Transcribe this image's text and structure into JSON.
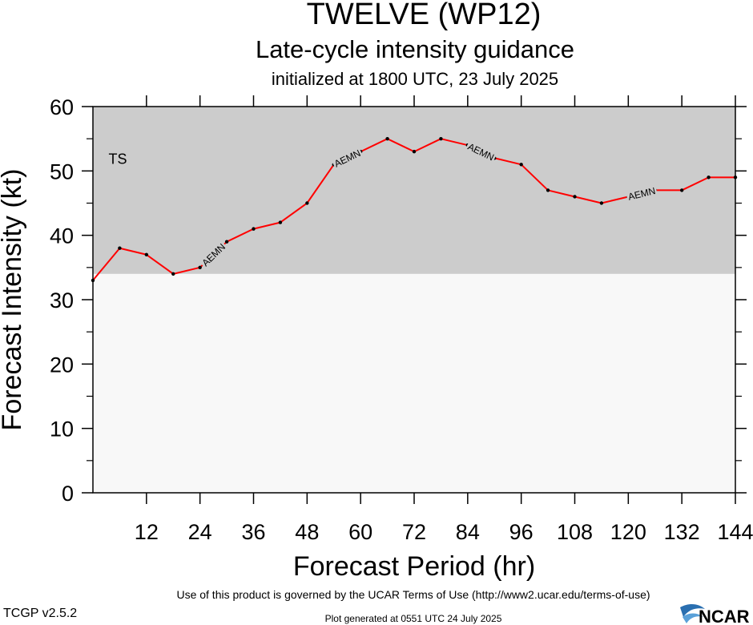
{
  "chart_data": {
    "type": "line",
    "title": "TWELVE (WP12)",
    "subtitle": "Late-cycle intensity guidance",
    "init_line": "initialized at 1800 UTC, 23 July 2025",
    "xlabel": "Forecast Period (hr)",
    "ylabel": "Forecast Intensity (kt)",
    "xlim": [
      0,
      144
    ],
    "ylim": [
      0,
      60
    ],
    "xticks": [
      12,
      24,
      36,
      48,
      60,
      72,
      84,
      96,
      108,
      120,
      132,
      144
    ],
    "yticks": [
      0,
      10,
      20,
      30,
      40,
      50,
      60
    ],
    "grid": false,
    "bands": [
      {
        "label": "TS",
        "from": 34,
        "to": 60,
        "color": "#cccccc"
      },
      {
        "label": "",
        "from": 0,
        "to": 34,
        "color": "#f8f8f8"
      }
    ],
    "series": [
      {
        "name": "AEMN",
        "color": "#ff0000",
        "x": [
          0,
          6,
          12,
          18,
          24,
          30,
          36,
          42,
          48,
          54,
          60,
          66,
          72,
          78,
          84,
          90,
          96,
          102,
          108,
          114,
          120,
          126,
          132,
          138,
          144
        ],
        "values": [
          33,
          38,
          37,
          34,
          35,
          39,
          41,
          42,
          45,
          51,
          53,
          55,
          53,
          55,
          54,
          52,
          51,
          47,
          46,
          45,
          46,
          47,
          47,
          49,
          49
        ],
        "line_labels": [
          {
            "text": "AEMN",
            "x": 27
          },
          {
            "text": "AEMN",
            "x": 57
          },
          {
            "text": "AEMN",
            "x": 87
          },
          {
            "text": "AEMN",
            "x": 123
          }
        ]
      }
    ]
  },
  "footer": {
    "terms": "Use of this product is governed by the UCAR Terms of Use (http://www2.ucar.edu/terms-of-use)",
    "version": "TCGP v2.5.2",
    "generated": "Plot generated at 0551 UTC   24 July 2025",
    "logo_text": "NCAR"
  }
}
